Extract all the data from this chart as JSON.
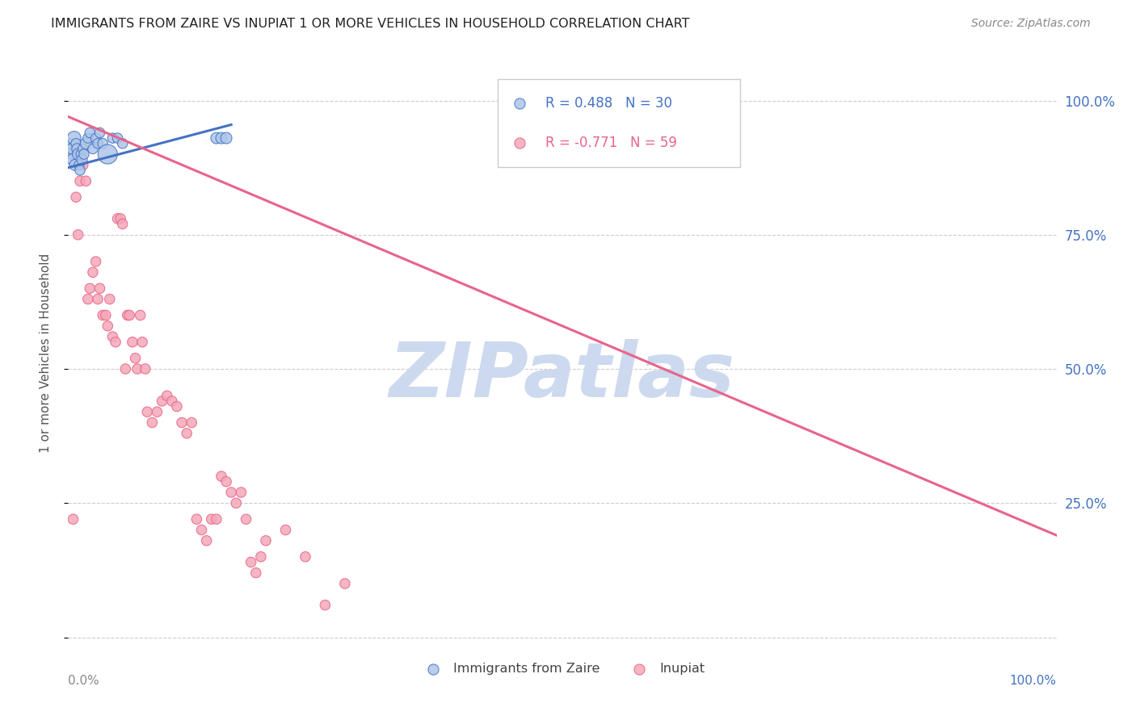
{
  "title": "IMMIGRANTS FROM ZAIRE VS INUPIAT 1 OR MORE VEHICLES IN HOUSEHOLD CORRELATION CHART",
  "source": "Source: ZipAtlas.com",
  "ylabel": "1 or more Vehicles in Household",
  "background_color": "#ffffff",
  "watermark": "ZIPatlas",
  "legend_blue_r": "R = 0.488",
  "legend_blue_n": "N = 30",
  "legend_pink_r": "R = -0.771",
  "legend_pink_n": "N = 59",
  "blue_scatter": {
    "x": [
      0.002,
      0.003,
      0.004,
      0.005,
      0.006,
      0.007,
      0.008,
      0.009,
      0.01,
      0.011,
      0.012,
      0.013,
      0.014,
      0.015,
      0.016,
      0.018,
      0.02,
      0.022,
      0.025,
      0.028,
      0.03,
      0.032,
      0.035,
      0.04,
      0.045,
      0.05,
      0.055,
      0.15,
      0.155,
      0.16
    ],
    "y": [
      0.92,
      0.9,
      0.91,
      0.89,
      0.93,
      0.88,
      0.92,
      0.91,
      0.9,
      0.88,
      0.87,
      0.9,
      0.89,
      0.91,
      0.9,
      0.92,
      0.93,
      0.94,
      0.91,
      0.93,
      0.92,
      0.94,
      0.92,
      0.9,
      0.93,
      0.93,
      0.92,
      0.93,
      0.93,
      0.93
    ],
    "sizes": [
      80,
      80,
      100,
      120,
      150,
      100,
      80,
      90,
      100,
      80,
      80,
      80,
      90,
      80,
      80,
      100,
      80,
      80,
      80,
      80,
      80,
      80,
      80,
      300,
      80,
      80,
      80,
      100,
      100,
      100
    ]
  },
  "pink_scatter": {
    "x": [
      0.005,
      0.008,
      0.01,
      0.012,
      0.015,
      0.018,
      0.02,
      0.022,
      0.025,
      0.028,
      0.03,
      0.032,
      0.035,
      0.038,
      0.04,
      0.042,
      0.045,
      0.048,
      0.05,
      0.053,
      0.055,
      0.058,
      0.06,
      0.062,
      0.065,
      0.068,
      0.07,
      0.073,
      0.075,
      0.078,
      0.08,
      0.085,
      0.09,
      0.095,
      0.1,
      0.105,
      0.11,
      0.115,
      0.12,
      0.125,
      0.13,
      0.135,
      0.14,
      0.145,
      0.15,
      0.155,
      0.16,
      0.165,
      0.17,
      0.175,
      0.18,
      0.185,
      0.19,
      0.195,
      0.2,
      0.22,
      0.24,
      0.26,
      0.28
    ],
    "y": [
      0.22,
      0.82,
      0.75,
      0.85,
      0.88,
      0.85,
      0.63,
      0.65,
      0.68,
      0.7,
      0.63,
      0.65,
      0.6,
      0.6,
      0.58,
      0.63,
      0.56,
      0.55,
      0.78,
      0.78,
      0.77,
      0.5,
      0.6,
      0.6,
      0.55,
      0.52,
      0.5,
      0.6,
      0.55,
      0.5,
      0.42,
      0.4,
      0.42,
      0.44,
      0.45,
      0.44,
      0.43,
      0.4,
      0.38,
      0.4,
      0.22,
      0.2,
      0.18,
      0.22,
      0.22,
      0.3,
      0.29,
      0.27,
      0.25,
      0.27,
      0.22,
      0.14,
      0.12,
      0.15,
      0.18,
      0.2,
      0.15,
      0.06,
      0.1
    ],
    "sizes": [
      80,
      80,
      80,
      80,
      80,
      80,
      80,
      80,
      80,
      80,
      80,
      80,
      80,
      80,
      80,
      80,
      80,
      80,
      80,
      80,
      80,
      80,
      80,
      80,
      80,
      80,
      80,
      80,
      80,
      80,
      80,
      80,
      80,
      80,
      80,
      80,
      80,
      80,
      80,
      80,
      80,
      80,
      80,
      80,
      80,
      80,
      80,
      80,
      80,
      80,
      80,
      80,
      80,
      80,
      80,
      80,
      80,
      80,
      80
    ]
  },
  "blue_line": {
    "x_start": 0.0,
    "x_end": 0.165,
    "y_start": 0.875,
    "y_end": 0.955
  },
  "pink_line": {
    "x_start": 0.0,
    "x_end": 1.0,
    "y_start": 0.97,
    "y_end": 0.19
  },
  "yticks": [
    0.0,
    0.25,
    0.5,
    0.75,
    1.0
  ],
  "xlim": [
    0.0,
    1.0
  ],
  "ylim": [
    -0.02,
    1.08
  ],
  "blue_color": "#aec6e8",
  "blue_line_color": "#4472c4",
  "pink_color": "#f4a8b8",
  "pink_line_color": "#e8648a",
  "grid_color": "#cccccc",
  "title_color": "#222222",
  "axis_label_color": "#4472c4",
  "watermark_color": "#ccd9ee"
}
